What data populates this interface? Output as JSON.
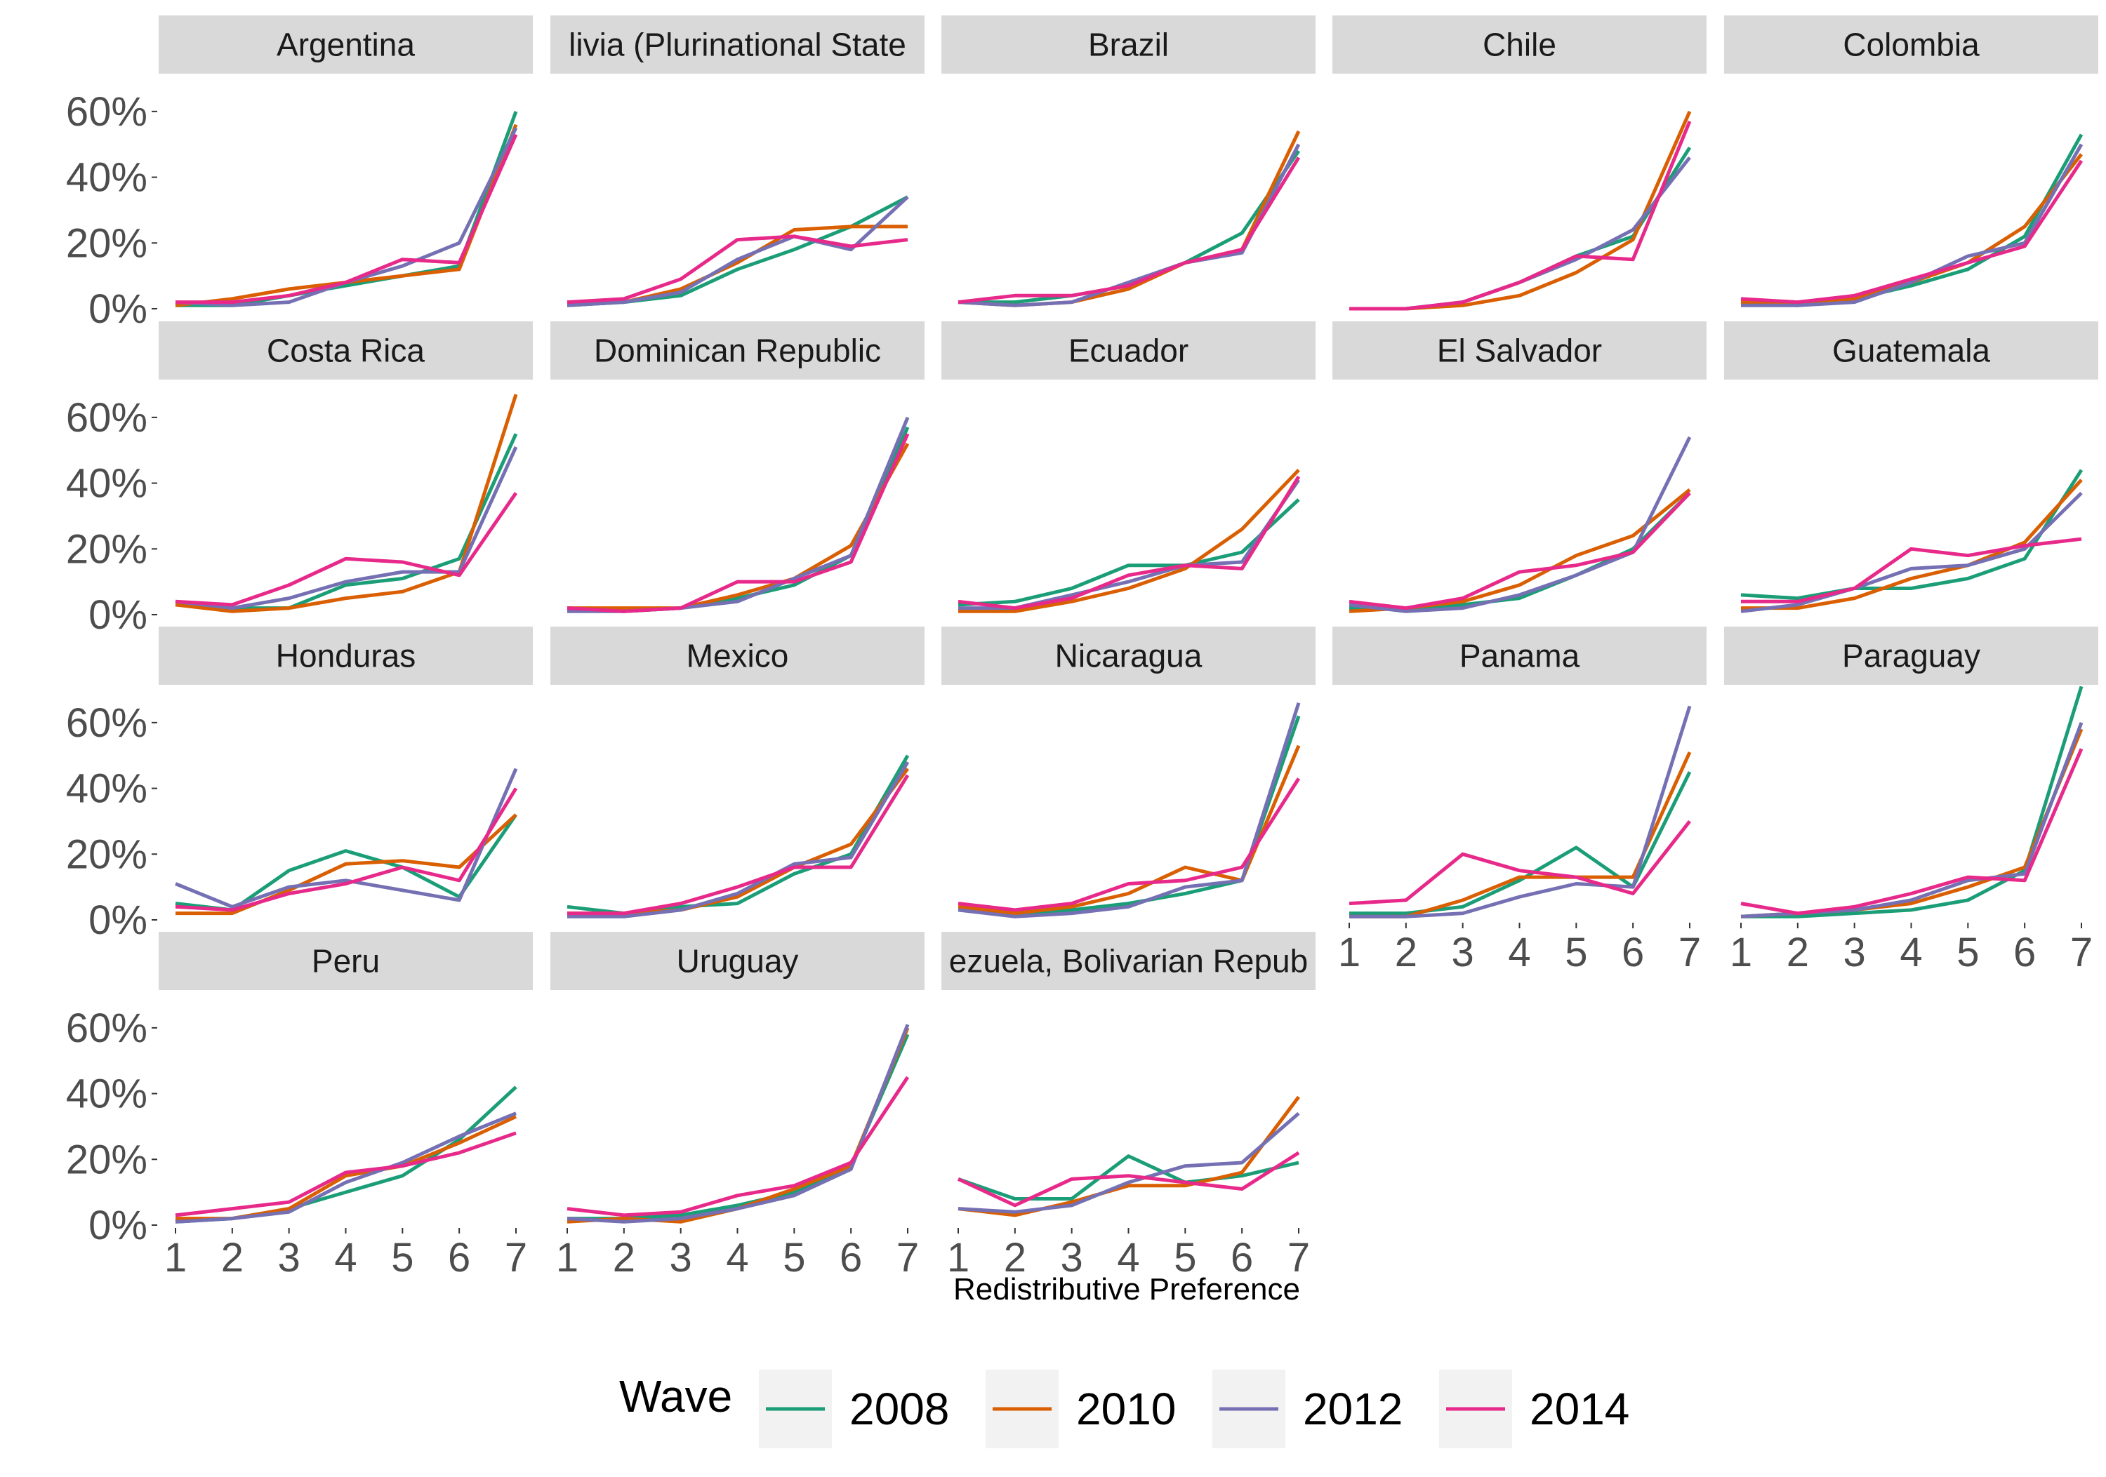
{
  "chart_data": {
    "type": "line",
    "facet_by": "country",
    "xlabel": "Redistributive Preference",
    "ylabel": "",
    "x": [
      1,
      2,
      3,
      4,
      5,
      6,
      7
    ],
    "x_ticks": [
      "1",
      "2",
      "3",
      "4",
      "5",
      "6",
      "7"
    ],
    "y_ticks": [
      "0%",
      "20%",
      "40%",
      "60%"
    ],
    "ylim": [
      0,
      0.7
    ],
    "legend": {
      "title": "Wave",
      "position": "bottom",
      "labels": [
        "2008",
        "2010",
        "2012",
        "2014"
      ]
    },
    "series_colors": {
      "2008": "#1b9e77",
      "2010": "#d95f02",
      "2012": "#7570b3",
      "2014": "#e7298a"
    },
    "panels": [
      {
        "country": "Argentina",
        "strip_label": "Argentina",
        "series": [
          {
            "name": "2008",
            "values": [
              0.01,
              0.01,
              0.04,
              0.07,
              0.1,
              0.13,
              0.6
            ]
          },
          {
            "name": "2010",
            "values": [
              0.01,
              0.03,
              0.06,
              0.08,
              0.1,
              0.12,
              0.56
            ]
          },
          {
            "name": "2012",
            "values": [
              0.02,
              0.01,
              0.02,
              0.08,
              0.13,
              0.2,
              0.55
            ]
          },
          {
            "name": "2014",
            "values": [
              0.02,
              0.02,
              0.04,
              0.08,
              0.15,
              0.14,
              0.53
            ]
          }
        ]
      },
      {
        "country": "Bolivia (Plurinational State of)",
        "strip_label": "livia (Plurinational State",
        "series": [
          {
            "name": "2008",
            "values": [
              0.01,
              0.02,
              0.04,
              0.12,
              0.18,
              0.25,
              0.34
            ]
          },
          {
            "name": "2010",
            "values": [
              0.02,
              0.02,
              0.06,
              0.14,
              0.24,
              0.25,
              0.25
            ]
          },
          {
            "name": "2012",
            "values": [
              0.01,
              0.02,
              0.05,
              0.15,
              0.22,
              0.18,
              0.34
            ]
          },
          {
            "name": "2014",
            "values": [
              0.02,
              0.03,
              0.09,
              0.21,
              0.22,
              0.19,
              0.21
            ]
          }
        ]
      },
      {
        "country": "Brazil",
        "strip_label": "Brazil",
        "series": [
          {
            "name": "2008",
            "values": [
              0.02,
              0.02,
              0.04,
              0.07,
              0.14,
              0.23,
              0.48
            ]
          },
          {
            "name": "2010",
            "values": [
              0.02,
              0.01,
              0.02,
              0.06,
              0.14,
              0.18,
              0.54
            ]
          },
          {
            "name": "2012",
            "values": [
              0.02,
              0.01,
              0.02,
              0.08,
              0.14,
              0.17,
              0.5
            ]
          },
          {
            "name": "2014",
            "values": [
              0.02,
              0.04,
              0.04,
              0.07,
              0.14,
              0.18,
              0.46
            ]
          }
        ]
      },
      {
        "country": "Chile",
        "strip_label": "Chile",
        "series": [
          {
            "name": "2008",
            "values": [
              0.0,
              0.0,
              0.02,
              0.08,
              0.16,
              0.22,
              0.49
            ]
          },
          {
            "name": "2010",
            "values": [
              0.0,
              0.0,
              0.01,
              0.04,
              0.11,
              0.21,
              0.6
            ]
          },
          {
            "name": "2012",
            "values": [
              0.0,
              0.0,
              0.02,
              0.08,
              0.15,
              0.24,
              0.46
            ]
          },
          {
            "name": "2014",
            "values": [
              0.0,
              0.0,
              0.02,
              0.08,
              0.16,
              0.15,
              0.57
            ]
          }
        ]
      },
      {
        "country": "Colombia",
        "strip_label": "Colombia",
        "series": [
          {
            "name": "2008",
            "values": [
              0.02,
              0.01,
              0.03,
              0.07,
              0.12,
              0.22,
              0.53
            ]
          },
          {
            "name": "2010",
            "values": [
              0.02,
              0.02,
              0.03,
              0.08,
              0.14,
              0.25,
              0.47
            ]
          },
          {
            "name": "2012",
            "values": [
              0.01,
              0.01,
              0.02,
              0.08,
              0.16,
              0.2,
              0.5
            ]
          },
          {
            "name": "2014",
            "values": [
              0.03,
              0.02,
              0.04,
              0.09,
              0.14,
              0.19,
              0.45
            ]
          }
        ]
      },
      {
        "country": "Costa Rica",
        "strip_label": "Costa Rica",
        "series": [
          {
            "name": "2008",
            "values": [
              0.03,
              0.02,
              0.02,
              0.09,
              0.11,
              0.17,
              0.55
            ]
          },
          {
            "name": "2010",
            "values": [
              0.03,
              0.01,
              0.02,
              0.05,
              0.07,
              0.13,
              0.67
            ]
          },
          {
            "name": "2012",
            "values": [
              0.04,
              0.02,
              0.05,
              0.1,
              0.13,
              0.13,
              0.51
            ]
          },
          {
            "name": "2014",
            "values": [
              0.04,
              0.03,
              0.09,
              0.17,
              0.16,
              0.12,
              0.37
            ]
          }
        ]
      },
      {
        "country": "Dominican Republic",
        "strip_label": "Dominican Republic",
        "series": [
          {
            "name": "2008",
            "values": [
              0.02,
              0.01,
              0.02,
              0.05,
              0.09,
              0.18,
              0.57
            ]
          },
          {
            "name": "2010",
            "values": [
              0.02,
              0.02,
              0.02,
              0.06,
              0.11,
              0.21,
              0.52
            ]
          },
          {
            "name": "2012",
            "values": [
              0.01,
              0.01,
              0.02,
              0.04,
              0.11,
              0.18,
              0.6
            ]
          },
          {
            "name": "2014",
            "values": [
              0.02,
              0.01,
              0.02,
              0.1,
              0.1,
              0.16,
              0.55
            ]
          }
        ]
      },
      {
        "country": "Ecuador",
        "strip_label": "Ecuador",
        "series": [
          {
            "name": "2008",
            "values": [
              0.03,
              0.04,
              0.08,
              0.15,
              0.15,
              0.19,
              0.35
            ]
          },
          {
            "name": "2010",
            "values": [
              0.01,
              0.01,
              0.04,
              0.08,
              0.14,
              0.26,
              0.44
            ]
          },
          {
            "name": "2012",
            "values": [
              0.02,
              0.02,
              0.06,
              0.1,
              0.15,
              0.16,
              0.41
            ]
          },
          {
            "name": "2014",
            "values": [
              0.04,
              0.02,
              0.05,
              0.12,
              0.15,
              0.14,
              0.42
            ]
          }
        ]
      },
      {
        "country": "El Salvador",
        "strip_label": "El Salvador",
        "series": [
          {
            "name": "2008",
            "values": [
              0.02,
              0.02,
              0.03,
              0.05,
              0.12,
              0.2,
              0.37
            ]
          },
          {
            "name": "2010",
            "values": [
              0.01,
              0.02,
              0.04,
              0.09,
              0.18,
              0.24,
              0.38
            ]
          },
          {
            "name": "2012",
            "values": [
              0.03,
              0.01,
              0.02,
              0.06,
              0.12,
              0.19,
              0.54
            ]
          },
          {
            "name": "2014",
            "values": [
              0.04,
              0.02,
              0.05,
              0.13,
              0.15,
              0.19,
              0.37
            ]
          }
        ]
      },
      {
        "country": "Guatemala",
        "strip_label": "Guatemala",
        "series": [
          {
            "name": "2008",
            "values": [
              0.06,
              0.05,
              0.08,
              0.08,
              0.11,
              0.17,
              0.44
            ]
          },
          {
            "name": "2010",
            "values": [
              0.02,
              0.02,
              0.05,
              0.11,
              0.15,
              0.22,
              0.41
            ]
          },
          {
            "name": "2012",
            "values": [
              0.01,
              0.03,
              0.08,
              0.14,
              0.15,
              0.2,
              0.37
            ]
          },
          {
            "name": "2014",
            "values": [
              0.04,
              0.04,
              0.08,
              0.2,
              0.18,
              0.21,
              0.23
            ]
          }
        ]
      },
      {
        "country": "Honduras",
        "strip_label": "Honduras",
        "series": [
          {
            "name": "2008",
            "values": [
              0.05,
              0.03,
              0.15,
              0.21,
              0.16,
              0.07,
              0.32
            ]
          },
          {
            "name": "2010",
            "values": [
              0.02,
              0.02,
              0.09,
              0.17,
              0.18,
              0.16,
              0.32
            ]
          },
          {
            "name": "2012",
            "values": [
              0.11,
              0.04,
              0.1,
              0.12,
              0.09,
              0.06,
              0.46
            ]
          },
          {
            "name": "2014",
            "values": [
              0.04,
              0.03,
              0.08,
              0.11,
              0.16,
              0.12,
              0.4
            ]
          }
        ]
      },
      {
        "country": "Mexico",
        "strip_label": "Mexico",
        "series": [
          {
            "name": "2008",
            "values": [
              0.04,
              0.02,
              0.04,
              0.05,
              0.14,
              0.2,
              0.5
            ]
          },
          {
            "name": "2010",
            "values": [
              0.02,
              0.02,
              0.03,
              0.07,
              0.16,
              0.23,
              0.46
            ]
          },
          {
            "name": "2012",
            "values": [
              0.01,
              0.01,
              0.03,
              0.08,
              0.17,
              0.19,
              0.48
            ]
          },
          {
            "name": "2014",
            "values": [
              0.02,
              0.02,
              0.05,
              0.1,
              0.16,
              0.16,
              0.44
            ]
          }
        ]
      },
      {
        "country": "Nicaragua",
        "strip_label": "Nicaragua",
        "series": [
          {
            "name": "2008",
            "values": [
              0.03,
              0.02,
              0.03,
              0.05,
              0.08,
              0.12,
              0.62
            ]
          },
          {
            "name": "2010",
            "values": [
              0.04,
              0.02,
              0.04,
              0.08,
              0.16,
              0.12,
              0.53
            ]
          },
          {
            "name": "2012",
            "values": [
              0.03,
              0.01,
              0.02,
              0.04,
              0.1,
              0.12,
              0.66
            ]
          },
          {
            "name": "2014",
            "values": [
              0.05,
              0.03,
              0.05,
              0.11,
              0.12,
              0.16,
              0.43
            ]
          }
        ]
      },
      {
        "country": "Panama",
        "strip_label": "Panama",
        "series": [
          {
            "name": "2008",
            "values": [
              0.02,
              0.02,
              0.04,
              0.12,
              0.22,
              0.1,
              0.45
            ]
          },
          {
            "name": "2010",
            "values": [
              0.01,
              0.01,
              0.06,
              0.13,
              0.13,
              0.13,
              0.51
            ]
          },
          {
            "name": "2012",
            "values": [
              0.01,
              0.01,
              0.02,
              0.07,
              0.11,
              0.1,
              0.65
            ]
          },
          {
            "name": "2014",
            "values": [
              0.05,
              0.06,
              0.2,
              0.15,
              0.13,
              0.08,
              0.3
            ]
          }
        ]
      },
      {
        "country": "Paraguay",
        "strip_label": "Paraguay",
        "series": [
          {
            "name": "2008",
            "values": [
              0.01,
              0.01,
              0.02,
              0.03,
              0.06,
              0.15,
              0.71
            ]
          },
          {
            "name": "2010",
            "values": [
              0.01,
              0.02,
              0.03,
              0.05,
              0.1,
              0.16,
              0.58
            ]
          },
          {
            "name": "2012",
            "values": [
              0.01,
              0.02,
              0.03,
              0.06,
              0.12,
              0.14,
              0.6
            ]
          },
          {
            "name": "2014",
            "values": [
              0.05,
              0.02,
              0.04,
              0.08,
              0.13,
              0.12,
              0.52
            ]
          }
        ]
      },
      {
        "country": "Peru",
        "strip_label": "Peru",
        "series": [
          {
            "name": "2008",
            "values": [
              0.01,
              0.02,
              0.05,
              0.1,
              0.15,
              0.26,
              0.42
            ]
          },
          {
            "name": "2010",
            "values": [
              0.02,
              0.02,
              0.05,
              0.15,
              0.18,
              0.25,
              0.33
            ]
          },
          {
            "name": "2012",
            "values": [
              0.01,
              0.02,
              0.04,
              0.13,
              0.19,
              0.27,
              0.34
            ]
          },
          {
            "name": "2014",
            "values": [
              0.03,
              0.05,
              0.07,
              0.16,
              0.18,
              0.22,
              0.28
            ]
          }
        ]
      },
      {
        "country": "Uruguay",
        "strip_label": "Uruguay",
        "series": [
          {
            "name": "2008",
            "values": [
              0.02,
              0.02,
              0.03,
              0.06,
              0.1,
              0.18,
              0.58
            ]
          },
          {
            "name": "2010",
            "values": [
              0.01,
              0.02,
              0.01,
              0.05,
              0.11,
              0.18,
              0.6
            ]
          },
          {
            "name": "2012",
            "values": [
              0.02,
              0.01,
              0.02,
              0.05,
              0.09,
              0.17,
              0.61
            ]
          },
          {
            "name": "2014",
            "values": [
              0.05,
              0.03,
              0.04,
              0.09,
              0.12,
              0.19,
              0.45
            ]
          }
        ]
      },
      {
        "country": "Venezuela, Bolivarian Republic of",
        "strip_label": "ezuela, Bolivarian Repub",
        "series": [
          {
            "name": "2008",
            "values": [
              0.14,
              0.08,
              0.08,
              0.21,
              0.13,
              0.15,
              0.19
            ]
          },
          {
            "name": "2010",
            "values": [
              0.05,
              0.03,
              0.07,
              0.12,
              0.12,
              0.16,
              0.39
            ]
          },
          {
            "name": "2012",
            "values": [
              0.05,
              0.04,
              0.06,
              0.13,
              0.18,
              0.19,
              0.34
            ]
          },
          {
            "name": "2014",
            "values": [
              0.14,
              0.06,
              0.14,
              0.15,
              0.13,
              0.11,
              0.22
            ]
          }
        ]
      }
    ]
  }
}
